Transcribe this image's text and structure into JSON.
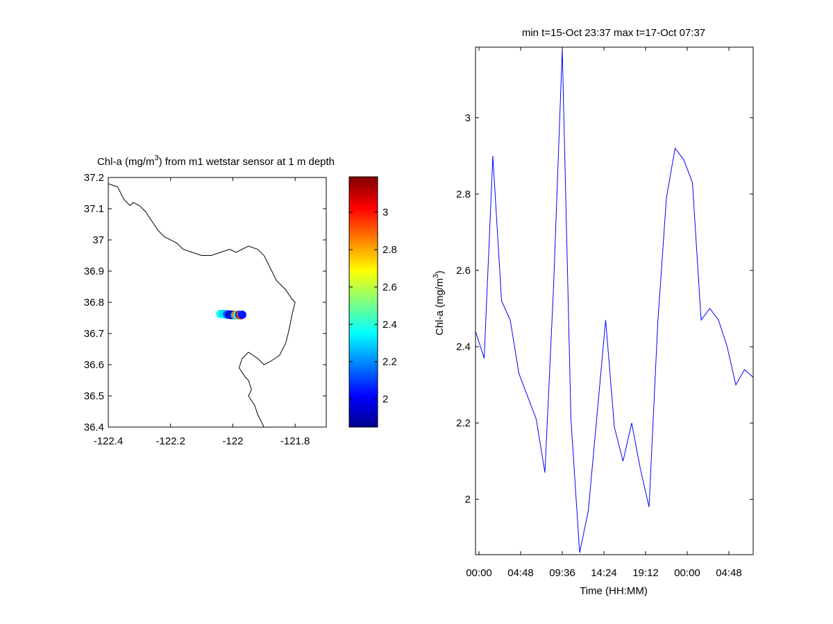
{
  "chart_data": [
    {
      "type": "scatter",
      "title_main": "Chl-a (mg/m",
      "title_sup": "3",
      "title_rest": ") from m1 wetstar sensor at 1 m depth",
      "xlim": [
        -122.4,
        -121.7
      ],
      "ylim": [
        36.4,
        37.2
      ],
      "xticks": [
        -122.4,
        -122.2,
        -122,
        -121.8
      ],
      "xtick_labels": [
        "-122.4",
        "-122.2",
        "-122",
        "-121.8"
      ],
      "yticks": [
        36.4,
        36.5,
        36.6,
        36.7,
        36.8,
        36.9,
        37.0,
        37.1,
        37.2
      ],
      "ytick_labels": [
        "36.4",
        "36.5",
        "36.6",
        "36.7",
        "36.8",
        "36.9",
        "37",
        "37.1",
        "37.2"
      ],
      "coastline": [
        [
          -122.4,
          37.18
        ],
        [
          -122.37,
          37.17
        ],
        [
          -122.36,
          37.15
        ],
        [
          -122.35,
          37.13
        ],
        [
          -122.34,
          37.12
        ],
        [
          -122.33,
          37.11
        ],
        [
          -122.32,
          37.12
        ],
        [
          -122.3,
          37.11
        ],
        [
          -122.28,
          37.09
        ],
        [
          -122.26,
          37.06
        ],
        [
          -122.24,
          37.03
        ],
        [
          -122.22,
          37.01
        ],
        [
          -122.18,
          36.99
        ],
        [
          -122.16,
          36.97
        ],
        [
          -122.13,
          36.96
        ],
        [
          -122.1,
          36.95
        ],
        [
          -122.07,
          36.95
        ],
        [
          -122.04,
          36.96
        ],
        [
          -122.01,
          36.97
        ],
        [
          -121.99,
          36.96
        ],
        [
          -121.97,
          36.97
        ],
        [
          -121.95,
          36.98
        ],
        [
          -121.92,
          36.97
        ],
        [
          -121.9,
          36.95
        ],
        [
          -121.88,
          36.91
        ],
        [
          -121.86,
          36.87
        ],
        [
          -121.83,
          36.84
        ],
        [
          -121.81,
          36.81
        ],
        [
          -121.8,
          36.8
        ],
        [
          -121.81,
          36.76
        ],
        [
          -121.82,
          36.71
        ],
        [
          -121.83,
          36.67
        ],
        [
          -121.85,
          36.63
        ],
        [
          -121.88,
          36.61
        ],
        [
          -121.9,
          36.6
        ],
        [
          -121.92,
          36.62
        ],
        [
          -121.95,
          36.64
        ],
        [
          -121.97,
          36.62
        ],
        [
          -121.98,
          36.59
        ],
        [
          -121.96,
          36.56
        ],
        [
          -121.95,
          36.55
        ],
        [
          -121.94,
          36.52
        ],
        [
          -121.95,
          36.5
        ],
        [
          -121.93,
          36.47
        ],
        [
          -121.92,
          36.44
        ],
        [
          -121.91,
          36.42
        ],
        [
          -121.9,
          36.4
        ]
      ],
      "points": {
        "x": [
          -122.04,
          -122.035,
          -122.03,
          -122.025,
          -122.02,
          -122.015,
          -122.01,
          -122.005,
          -122.0,
          -121.995,
          -121.99,
          -121.985,
          -121.98,
          -121.975,
          -121.97
        ],
        "y": [
          36.763,
          36.762,
          36.763,
          36.761,
          36.762,
          36.76,
          36.761,
          36.759,
          36.76,
          36.759,
          36.76,
          36.758,
          36.76,
          36.758,
          36.76
        ],
        "values": [
          2.35,
          2.4,
          2.3,
          2.33,
          2.2,
          2.1,
          1.95,
          2.05,
          1.9,
          2.2,
          2.85,
          2.45,
          2.1,
          2.95,
          2.05
        ]
      },
      "colorbar": {
        "colormap": "jet",
        "clim": [
          1.85,
          3.19
        ],
        "ticks": [
          2.0,
          2.2,
          2.4,
          2.6,
          2.8,
          3.0
        ],
        "tick_labels": [
          "2",
          "2.2",
          "2.4",
          "2.6",
          "2.8",
          "3"
        ]
      }
    },
    {
      "type": "line",
      "title": "min t=15-Oct 23:37 max t=17-Oct 07:37",
      "xlabel": "Time (HH:MM)",
      "ylabel_main": "Chl-a (mg/m",
      "ylabel_sup": "3",
      "ylabel_rest": ")",
      "x_units": "hours",
      "xlim": [
        -0.4,
        31.6
      ],
      "ylim": [
        1.855,
        3.185
      ],
      "xticks": [
        0,
        4.8,
        9.6,
        14.4,
        19.2,
        24,
        28.8
      ],
      "xtick_labels": [
        "00:00",
        "04:48",
        "09:36",
        "14:24",
        "19:12",
        "00:00",
        "04:48"
      ],
      "yticks": [
        2.0,
        2.2,
        2.4,
        2.6,
        2.8,
        3.0
      ],
      "ytick_labels": [
        "2",
        "2.2",
        "2.4",
        "2.6",
        "2.8",
        "3"
      ],
      "line_color": "#0000ff",
      "series": [
        {
          "x": [
            -0.4,
            0.6,
            1.6,
            2.6,
            3.6,
            4.6,
            5.6,
            6.6,
            7.6,
            8.6,
            9.6,
            10.6,
            11.6,
            12.6,
            13.6,
            14.6,
            15.6,
            16.6,
            17.6,
            18.6,
            19.6,
            20.6,
            21.6,
            22.6,
            23.6,
            24.6,
            25.6,
            26.6,
            27.6,
            28.6,
            29.6,
            30.6,
            31.6
          ],
          "y": [
            2.44,
            2.37,
            2.9,
            2.52,
            2.47,
            2.33,
            2.27,
            2.21,
            2.07,
            2.56,
            3.18,
            2.21,
            1.86,
            1.97,
            2.22,
            2.47,
            2.19,
            2.1,
            2.2,
            2.08,
            1.98,
            2.46,
            2.79,
            2.92,
            2.89,
            2.83,
            2.47,
            2.5,
            2.47,
            2.4,
            2.3,
            2.34,
            2.32
          ]
        }
      ]
    }
  ]
}
